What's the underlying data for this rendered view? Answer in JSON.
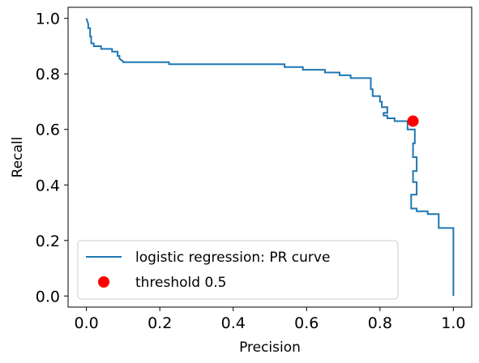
{
  "chart_data": {
    "type": "line",
    "title": "",
    "xlabel": "Precision",
    "ylabel": "Recall",
    "xlim": [
      -0.05,
      1.05
    ],
    "ylim": [
      -0.04,
      1.04
    ],
    "xticks": [
      0.0,
      0.2,
      0.4,
      0.6,
      0.8,
      1.0
    ],
    "yticks": [
      0.0,
      0.2,
      0.4,
      0.6,
      0.8,
      1.0
    ],
    "xtick_labels": [
      "0.0",
      "0.2",
      "0.4",
      "0.6",
      "0.8",
      "1.0"
    ],
    "ytick_labels": [
      "0.0",
      "0.2",
      "0.4",
      "0.6",
      "0.8",
      "1.0"
    ],
    "legend_placement": "lower-left",
    "series": [
      {
        "name": "logistic regression: PR curve",
        "color": "#1f77b4",
        "x": [
          0.0,
          0.005,
          0.005,
          0.01,
          0.01,
          0.013,
          0.013,
          0.02,
          0.02,
          0.04,
          0.04,
          0.07,
          0.07,
          0.085,
          0.085,
          0.09,
          0.09,
          0.095,
          0.1,
          0.1,
          0.225,
          0.225,
          0.54,
          0.54,
          0.59,
          0.59,
          0.65,
          0.65,
          0.69,
          0.69,
          0.72,
          0.72,
          0.775,
          0.775,
          0.78,
          0.78,
          0.8,
          0.8,
          0.805,
          0.805,
          0.82,
          0.82,
          0.81,
          0.81,
          0.82,
          0.82,
          0.84,
          0.84,
          0.875,
          0.875,
          0.895,
          0.895,
          0.89,
          0.89,
          0.9,
          0.9,
          0.89,
          0.89,
          0.9,
          0.9,
          0.885,
          0.885,
          0.9,
          0.9,
          0.93,
          0.93,
          0.96,
          0.96,
          1.0,
          1.0
        ],
        "y": [
          1.0,
          0.98,
          0.965,
          0.965,
          0.935,
          0.935,
          0.91,
          0.91,
          0.9,
          0.9,
          0.89,
          0.89,
          0.88,
          0.88,
          0.865,
          0.865,
          0.855,
          0.85,
          0.845,
          0.842,
          0.842,
          0.835,
          0.835,
          0.825,
          0.825,
          0.815,
          0.815,
          0.805,
          0.805,
          0.795,
          0.795,
          0.785,
          0.785,
          0.745,
          0.745,
          0.72,
          0.72,
          0.7,
          0.7,
          0.68,
          0.68,
          0.66,
          0.66,
          0.65,
          0.65,
          0.64,
          0.64,
          0.63,
          0.63,
          0.6,
          0.6,
          0.55,
          0.55,
          0.5,
          0.5,
          0.45,
          0.45,
          0.41,
          0.41,
          0.365,
          0.365,
          0.315,
          0.315,
          0.305,
          0.305,
          0.295,
          0.295,
          0.245,
          0.245,
          0.0
        ]
      },
      {
        "name": "threshold 0.5",
        "color": "#ff0000",
        "marker": "circle",
        "x": [
          0.89
        ],
        "y": [
          0.63
        ]
      }
    ]
  }
}
